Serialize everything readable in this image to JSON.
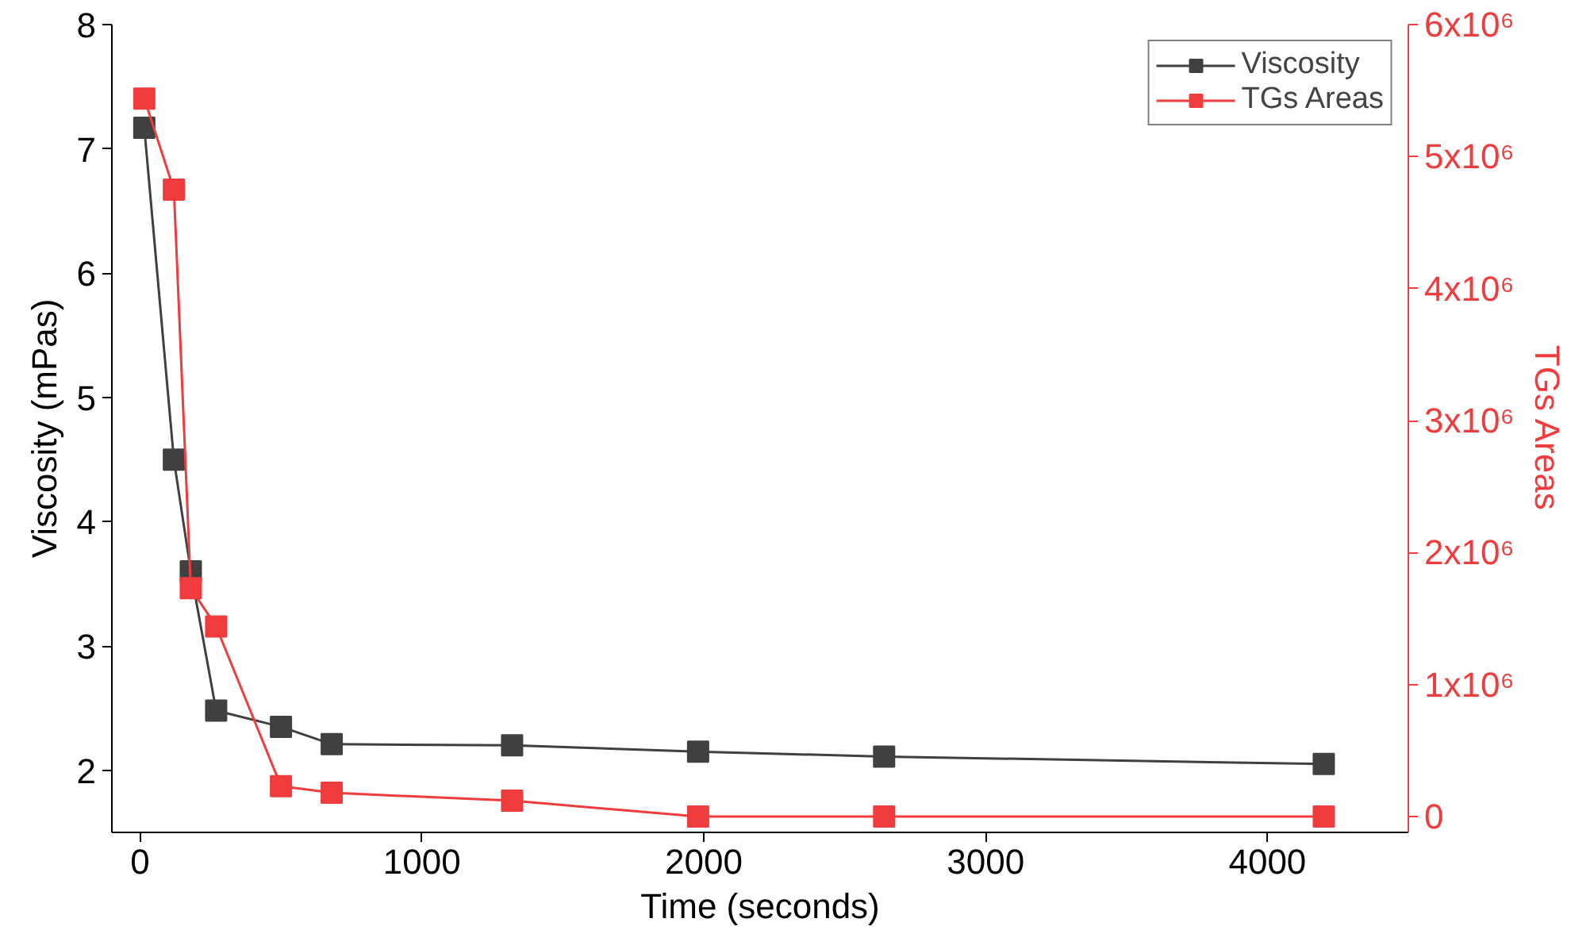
{
  "chart_data": {
    "type": "line",
    "xlabel": "Time (seconds)",
    "ylabel": "Viscosity (mPas)",
    "y2label": "TGs Areas",
    "x": [
      15,
      120,
      180,
      270,
      500,
      680,
      1320,
      1980,
      2640,
      4200
    ],
    "series": [
      {
        "name": "Viscosity",
        "color": "#404040",
        "values": [
          7.17,
          4.5,
          3.6,
          2.48,
          2.35,
          2.21,
          2.2,
          2.15,
          2.11,
          2.05
        ]
      },
      {
        "name": "TGs Areas",
        "color": "#f03c3c",
        "axis": "y2",
        "values": [
          5440000,
          4750000,
          1730000,
          1440000,
          230000,
          180000,
          120000,
          0,
          0,
          0
        ]
      }
    ],
    "xlim": [
      -100,
      4500
    ],
    "xticks": [
      0,
      1000,
      2000,
      3000,
      4000
    ],
    "ylim": [
      1.5,
      8
    ],
    "yticks": [
      2,
      3,
      4,
      5,
      6,
      7,
      8
    ],
    "y2lim": [
      -120000,
      6000000
    ],
    "y2ticks": [
      0,
      {
        "value": 1000000,
        "label": "1x10⁶"
      },
      {
        "value": 2000000,
        "label": "2x10⁶"
      },
      {
        "value": 3000000,
        "label": "3x10⁶"
      },
      {
        "value": 4000000,
        "label": "4x10⁶"
      },
      {
        "value": 5000000,
        "label": "5x10⁶"
      },
      {
        "value": 6000000,
        "label": "6x10⁶"
      }
    ],
    "legend": "top right",
    "marker": "square",
    "line_style": "solid",
    "grid": false
  }
}
